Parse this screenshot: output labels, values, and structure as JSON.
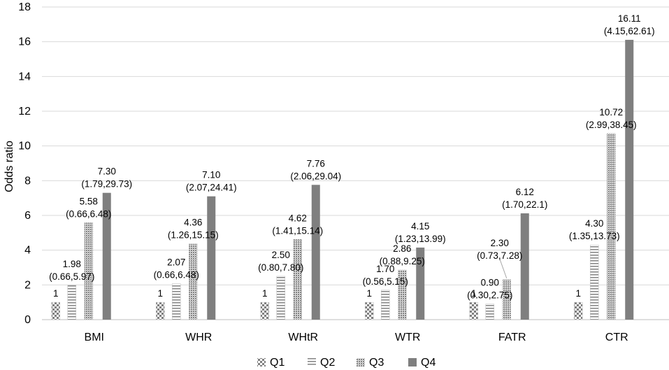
{
  "chart_data": {
    "type": "bar",
    "title": "",
    "xlabel": "",
    "ylabel": "Odds ratio",
    "ylim": [
      0,
      18
    ],
    "yticks": [
      0,
      2,
      4,
      6,
      8,
      10,
      12,
      14,
      16,
      18
    ],
    "grid": true,
    "legend_position": "bottom",
    "categories": [
      "BMI",
      "WHR",
      "WHtR",
      "WTR",
      "FATR",
      "CTR"
    ],
    "series": [
      {
        "name": "Q1",
        "pattern": "checker",
        "values": [
          1,
          1,
          1,
          1,
          1,
          1
        ],
        "labels": [
          [
            "1"
          ],
          [
            "1"
          ],
          [
            "1"
          ],
          [
            "1"
          ],
          [
            "1"
          ],
          [
            "1"
          ]
        ]
      },
      {
        "name": "Q2",
        "pattern": "horizontal-lines",
        "values": [
          1.98,
          2.07,
          2.5,
          1.7,
          0.9,
          4.3
        ],
        "labels": [
          [
            "1.98",
            "(0.66,5.97)"
          ],
          [
            "2.07",
            "(0.66,6.48)"
          ],
          [
            "2.50",
            "(0.80,7.80)"
          ],
          [
            "1.70",
            "(0.56,5.15)"
          ],
          [
            "0.90",
            "(0.30,2.75)"
          ],
          [
            "4.30",
            "(1.35,13.73)"
          ]
        ]
      },
      {
        "name": "Q3",
        "pattern": "dense-dots",
        "values": [
          5.58,
          4.36,
          4.62,
          2.86,
          2.3,
          10.72
        ],
        "labels": [
          [
            "5.58",
            "(0.66,6.48)"
          ],
          [
            "4.36",
            "(1.26,15.15)"
          ],
          [
            "4.62",
            "(1.41,15.14)"
          ],
          [
            "2.86",
            "(0.88,9.25)"
          ],
          [
            "2.30",
            "(0.73,7.28)"
          ],
          [
            "10.72",
            "(2.99,38.45)"
          ]
        ]
      },
      {
        "name": "Q4",
        "pattern": "solid",
        "values": [
          7.3,
          7.1,
          7.76,
          4.15,
          6.12,
          16.11
        ],
        "labels": [
          [
            "7.30",
            "(1.79,29.73)"
          ],
          [
            "7.10",
            "(2.07,24.41)"
          ],
          [
            "7.76",
            "(2.06,29.04)"
          ],
          [
            "4.15",
            "(1.23,13.99)"
          ],
          [
            "6.12",
            "(1.70,22.1)"
          ],
          [
            "16.11",
            "(4.15,62.61)"
          ]
        ]
      }
    ],
    "colors": {
      "dark": "#7f7f7f",
      "grid": "#d9d9d9"
    }
  }
}
